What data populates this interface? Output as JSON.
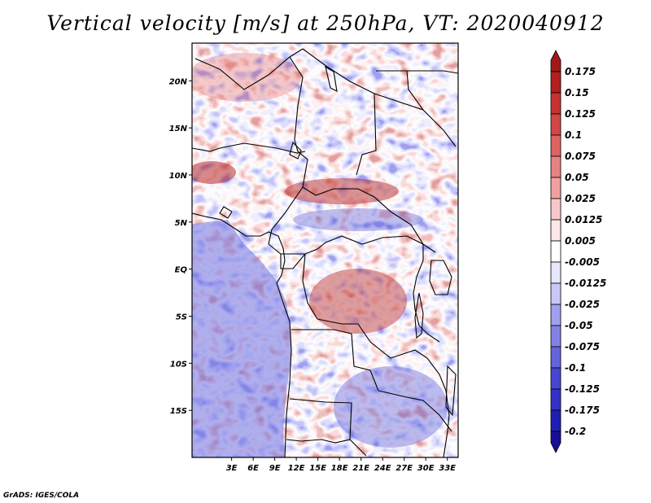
{
  "title": "Vertical velocity [m/s] at 250hPa, VT: 2020040912",
  "credit": "GrADS: IGES/COLA",
  "map": {
    "lat_range": [
      -20,
      24
    ],
    "lon_range": [
      -2.5,
      34.5
    ],
    "lat_ticks": [
      {
        "value": 20,
        "label": "20N"
      },
      {
        "value": 15,
        "label": "15N"
      },
      {
        "value": 10,
        "label": "10N"
      },
      {
        "value": 5,
        "label": "5N"
      },
      {
        "value": 0,
        "label": "EQ"
      },
      {
        "value": -5,
        "label": "5S"
      },
      {
        "value": -10,
        "label": "10S"
      },
      {
        "value": -15,
        "label": "15S"
      }
    ],
    "lon_ticks": [
      {
        "value": 3,
        "label": "3E"
      },
      {
        "value": 6,
        "label": "6E"
      },
      {
        "value": 9,
        "label": "9E"
      },
      {
        "value": 12,
        "label": "12E"
      },
      {
        "value": 15,
        "label": "15E"
      },
      {
        "value": 18,
        "label": "18E"
      },
      {
        "value": 21,
        "label": "21E"
      },
      {
        "value": 24,
        "label": "24E"
      },
      {
        "value": 27,
        "label": "27E"
      },
      {
        "value": 30,
        "label": "30E"
      },
      {
        "value": 33,
        "label": "33E"
      }
    ]
  },
  "colorbar": {
    "levels": [
      "0.175",
      "0.15",
      "0.125",
      "0.1",
      "0.075",
      "0.05",
      "0.025",
      "0.0125",
      "0.005",
      "-0.005",
      "-0.0125",
      "-0.025",
      "-0.05",
      "-0.075",
      "-0.1",
      "-0.125",
      "-0.175",
      "-0.2"
    ],
    "colors": [
      "#a01919",
      "#b41f1f",
      "#c83232",
      "#d24646",
      "#dc6464",
      "#e68282",
      "#f0a0a0",
      "#f8c8c8",
      "#fce6e6",
      "#ffffff",
      "#e6e6fc",
      "#c8c8f8",
      "#a0a0f0",
      "#8282e6",
      "#6464dc",
      "#4646d2",
      "#3232c8",
      "#1f1fb4",
      "#190f96"
    ]
  }
}
